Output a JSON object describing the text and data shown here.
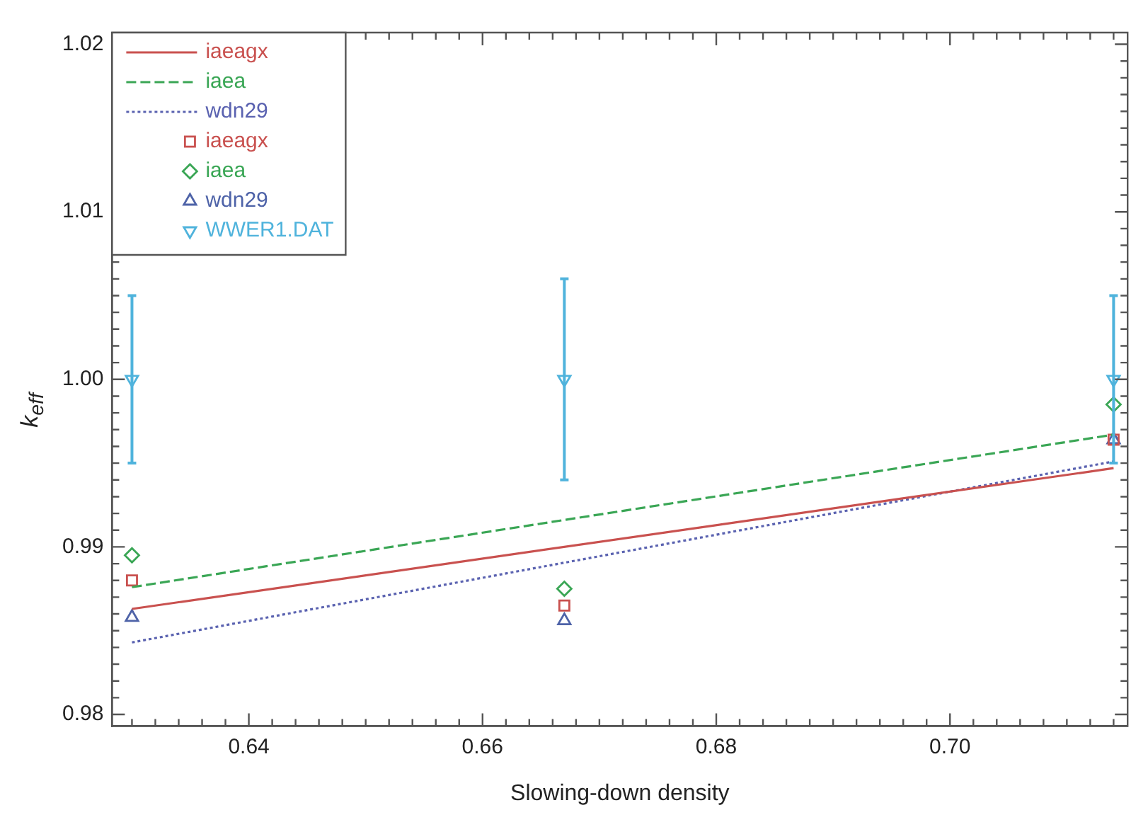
{
  "chart_data": {
    "type": "line",
    "xlabel": "Slowing-down density",
    "ylabel": "k$_{eff}$",
    "xlim": [
      0.6283,
      0.7152
    ],
    "ylim": [
      0.9793,
      1.0207
    ],
    "xticks": [
      {
        "value": 0.63,
        "label": null
      },
      {
        "value": 0.632,
        "label": null
      },
      {
        "value": 0.634,
        "label": null
      },
      {
        "value": 0.636,
        "label": null
      },
      {
        "value": 0.638,
        "label": null
      },
      0.64,
      {
        "value": 0.642,
        "label": null
      },
      {
        "value": 0.644,
        "label": null
      },
      {
        "value": 0.646,
        "label": null
      },
      {
        "value": 0.648,
        "label": null
      },
      {
        "value": 0.65,
        "label": null
      },
      {
        "value": 0.652,
        "label": null
      },
      {
        "value": 0.654,
        "label": null
      },
      {
        "value": 0.656,
        "label": null
      },
      {
        "value": 0.658,
        "label": null
      },
      0.66,
      {
        "value": 0.662,
        "label": null
      },
      {
        "value": 0.664,
        "label": null
      },
      {
        "value": 0.666,
        "label": null
      },
      {
        "value": 0.668,
        "label": null
      },
      {
        "value": 0.67,
        "label": null
      },
      {
        "value": 0.672,
        "label": null
      },
      {
        "value": 0.674,
        "label": null
      },
      {
        "value": 0.676,
        "label": null
      },
      {
        "value": 0.678,
        "label": null
      },
      0.68,
      {
        "value": 0.682,
        "label": null
      },
      {
        "value": 0.684,
        "label": null
      },
      {
        "value": 0.686,
        "label": null
      },
      {
        "value": 0.688,
        "label": null
      },
      {
        "value": 0.69,
        "label": null
      },
      {
        "value": 0.692,
        "label": null
      },
      {
        "value": 0.694,
        "label": null
      },
      {
        "value": 0.696,
        "label": null
      },
      {
        "value": 0.698,
        "label": null
      },
      {
        "value": 0.7,
        "label": "0.70"
      },
      {
        "value": 0.702,
        "label": null
      },
      {
        "value": 0.704,
        "label": null
      },
      {
        "value": 0.706,
        "label": null
      },
      {
        "value": 0.708,
        "label": null
      },
      {
        "value": 0.71,
        "label": null
      },
      {
        "value": 0.712,
        "label": null
      },
      {
        "value": 0.714,
        "label": null
      }
    ],
    "yticks": [
      0.98,
      {
        "value": 0.981,
        "label": null
      },
      {
        "value": 0.982,
        "label": null
      },
      {
        "value": 0.983,
        "label": null
      },
      {
        "value": 0.984,
        "label": null
      },
      {
        "value": 0.985,
        "label": null
      },
      {
        "value": 0.986,
        "label": null
      },
      {
        "value": 0.987,
        "label": null
      },
      {
        "value": 0.988,
        "label": null
      },
      {
        "value": 0.989,
        "label": null
      },
      0.99,
      {
        "value": 0.991,
        "label": null
      },
      {
        "value": 0.992,
        "label": null
      },
      {
        "value": 0.993,
        "label": null
      },
      {
        "value": 0.994,
        "label": null
      },
      {
        "value": 0.995,
        "label": null
      },
      {
        "value": 0.996,
        "label": null
      },
      {
        "value": 0.997,
        "label": null
      },
      {
        "value": 0.998,
        "label": null
      },
      {
        "value": 0.999,
        "label": null
      },
      {
        "value": 1,
        "label": "1.00"
      },
      {
        "value": 1.001,
        "label": null
      },
      {
        "value": 1.002,
        "label": null
      },
      {
        "value": 1.003,
        "label": null
      },
      {
        "value": 1.004,
        "label": null
      },
      {
        "value": 1.005,
        "label": null
      },
      {
        "value": 1.006,
        "label": null
      },
      {
        "value": 1.007,
        "label": null
      },
      {
        "value": 1.008,
        "label": null
      },
      {
        "value": 1.009,
        "label": null
      },
      1.01,
      {
        "value": 1.011,
        "label": null
      },
      {
        "value": 1.012,
        "label": null
      },
      {
        "value": 1.013,
        "label": null
      },
      {
        "value": 1.014,
        "label": null
      },
      {
        "value": 1.015,
        "label": null
      },
      {
        "value": 1.016,
        "label": null
      },
      {
        "value": 1.017,
        "label": null
      },
      {
        "value": 1.018,
        "label": null
      },
      {
        "value": 1.019,
        "label": null
      },
      1.02
    ],
    "grid": false,
    "legend": "top left",
    "series": [
      {
        "name": "iaeagx",
        "type": "line",
        "color": "#c9514f",
        "line_style": "solid",
        "marker": "none",
        "x": [
          0.63,
          0.714
        ],
        "values": [
          0.9863,
          0.9947
        ]
      },
      {
        "name": "iaea",
        "type": "line",
        "color": "#3aa655",
        "line_style": "dashed",
        "marker": "none",
        "x": [
          0.63,
          0.714
        ],
        "values": [
          0.9876,
          0.9967
        ]
      },
      {
        "name": "wdn29",
        "type": "line",
        "color": "#5a62b0",
        "line_style": "dotted",
        "marker": "none",
        "x": [
          0.63,
          0.714
        ],
        "values": [
          0.9843,
          0.9951
        ]
      },
      {
        "name": "iaeagx",
        "type": "scatter",
        "color": "#c9514f",
        "marker": "square",
        "x": [
          0.63,
          0.667,
          0.714
        ],
        "values": [
          0.988,
          0.9865,
          0.9964
        ]
      },
      {
        "name": "iaea",
        "type": "scatter",
        "color": "#3aa655",
        "marker": "diamond",
        "x": [
          0.63,
          0.667,
          0.714
        ],
        "values": [
          0.9895,
          0.9875,
          0.9985
        ]
      },
      {
        "name": "wdn29",
        "type": "scatter",
        "color": "#4e63a8",
        "marker": "triangle",
        "x": [
          0.63,
          0.667,
          0.714
        ],
        "values": [
          0.9858,
          0.9856,
          0.9964
        ]
      },
      {
        "name": "WWER1.DAT",
        "type": "scatter",
        "color": "#4fb3dc",
        "marker": "triangle-down",
        "x": [
          0.63,
          0.667,
          0.714
        ],
        "values": [
          1.0,
          1.0,
          1.0
        ],
        "errors": [
          0.005,
          0.006,
          0.005
        ]
      }
    ]
  }
}
